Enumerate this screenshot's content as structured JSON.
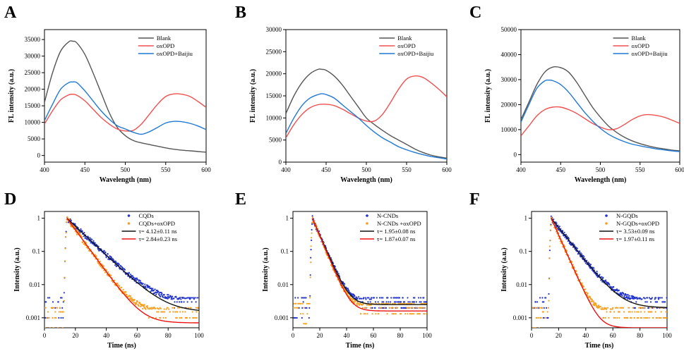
{
  "figure": {
    "panels": [
      {
        "letter": "A",
        "xlabel": "Wavelength (nm)",
        "ylabel": "FL intensity (a.u.)"
      },
      {
        "letter": "B",
        "xlabel": "Wavelength (nm)",
        "ylabel": "FL intensity (a.u.)"
      },
      {
        "letter": "C",
        "xlabel": "Wavelength (nm)",
        "ylabel": "FL intensity (a.u.)"
      },
      {
        "letter": "D",
        "xlabel": "Time (ns)",
        "ylabel": "Intensity (a.u.)"
      },
      {
        "letter": "E",
        "xlabel": "Time (ns)",
        "ylabel": "Intensity (a.u.)"
      },
      {
        "letter": "F",
        "xlabel": "Time (ns)",
        "ylabel": "Intensity (a.u.)"
      }
    ]
  },
  "colors": {
    "black": "#555555",
    "red": "#f05050",
    "blue": "#1f78d4",
    "dot_blue": "#2233cc",
    "dot_orange": "#f5a020",
    "fit_black": "#111111",
    "fit_red": "#ee1111"
  },
  "chart_data": [
    {
      "panel": "A",
      "type": "line",
      "xlabel": "Wavelength (nm)",
      "ylabel": "FL intensity (a.u.)",
      "xlim": [
        400,
        600
      ],
      "ylim": [
        -2000,
        38000
      ],
      "xticks": [
        "400",
        "450",
        "500",
        "550",
        "600"
      ],
      "yticks": [
        "0",
        "5000",
        "10000",
        "15000",
        "20000",
        "25000",
        "30000",
        "35000"
      ],
      "legend_position": "top-right",
      "series": [
        {
          "name": "Blank",
          "color": "black",
          "x": [
            400,
            410,
            420,
            430,
            435,
            440,
            450,
            460,
            470,
            480,
            490,
            500,
            510,
            520,
            530,
            540,
            550,
            560,
            570,
            580,
            590,
            600
          ],
          "y": [
            16000,
            25000,
            31500,
            34300,
            34500,
            34000,
            30500,
            25000,
            19000,
            13000,
            8500,
            6000,
            4500,
            3800,
            3300,
            2800,
            2300,
            1900,
            1600,
            1400,
            1200,
            1000
          ]
        },
        {
          "name": "oxOPD",
          "color": "red",
          "x": [
            400,
            410,
            420,
            430,
            435,
            440,
            450,
            460,
            470,
            480,
            490,
            500,
            510,
            520,
            530,
            540,
            550,
            560,
            570,
            580,
            590,
            600
          ],
          "y": [
            9500,
            13500,
            16800,
            18300,
            18500,
            18200,
            16500,
            14000,
            11500,
            9500,
            8000,
            7400,
            7600,
            9500,
            12500,
            15500,
            17800,
            18600,
            18500,
            17800,
            16300,
            14500
          ]
        },
        {
          "name": "oxOPD+Baijiu",
          "color": "blue",
          "x": [
            400,
            410,
            420,
            430,
            435,
            440,
            450,
            460,
            470,
            480,
            490,
            500,
            510,
            520,
            530,
            540,
            550,
            560,
            570,
            580,
            590,
            600
          ],
          "y": [
            10500,
            15500,
            20000,
            22000,
            22200,
            22000,
            19500,
            16500,
            13500,
            11000,
            9000,
            8000,
            7000,
            6400,
            7200,
            8500,
            9800,
            10300,
            10200,
            9700,
            8900,
            7800
          ]
        }
      ]
    },
    {
      "panel": "B",
      "type": "line",
      "xlabel": "Wavelength (nm)",
      "ylabel": "FL intensity (a.u.)",
      "xlim": [
        400,
        600
      ],
      "ylim": [
        0,
        30000
      ],
      "xticks": [
        "400",
        "450",
        "500",
        "550",
        "600"
      ],
      "yticks": [
        "0",
        "5000",
        "10000",
        "15000",
        "20000",
        "25000",
        "30000"
      ],
      "legend_position": "top-right",
      "series": [
        {
          "name": "Blank",
          "color": "black",
          "x": [
            400,
            410,
            420,
            430,
            440,
            445,
            450,
            460,
            470,
            480,
            490,
            500,
            510,
            520,
            530,
            540,
            550,
            560,
            570,
            580,
            590,
            600
          ],
          "y": [
            11000,
            15000,
            18000,
            20000,
            21000,
            21000,
            20800,
            19500,
            17500,
            15000,
            12500,
            10000,
            8500,
            7200,
            6000,
            5000,
            4000,
            3000,
            2200,
            1600,
            1200,
            900
          ]
        },
        {
          "name": "oxOPD",
          "color": "red",
          "x": [
            400,
            410,
            420,
            430,
            440,
            450,
            460,
            470,
            480,
            490,
            500,
            510,
            520,
            530,
            540,
            550,
            560,
            570,
            580,
            590,
            600
          ],
          "y": [
            5500,
            8500,
            10800,
            12300,
            13000,
            13100,
            12800,
            12000,
            11000,
            10000,
            9300,
            9300,
            10800,
            13500,
            16500,
            18800,
            19500,
            19200,
            18000,
            16500,
            14800
          ]
        },
        {
          "name": "oxOPD+Baijiu",
          "color": "blue",
          "x": [
            400,
            410,
            420,
            430,
            440,
            445,
            450,
            460,
            470,
            480,
            490,
            500,
            510,
            520,
            530,
            540,
            550,
            560,
            570,
            580,
            590,
            600
          ],
          "y": [
            6500,
            10000,
            12800,
            14500,
            15300,
            15500,
            15300,
            14500,
            13000,
            11500,
            10000,
            8300,
            6800,
            5500,
            4500,
            3500,
            2800,
            2200,
            1700,
            1300,
            1000,
            700
          ]
        }
      ]
    },
    {
      "panel": "C",
      "type": "line",
      "xlabel": "Wavelength (nm)",
      "ylabel": "FL intensity (a.u.)",
      "xlim": [
        400,
        600
      ],
      "ylim": [
        -3000,
        50000
      ],
      "xticks": [
        "400",
        "450",
        "500",
        "550",
        "600"
      ],
      "yticks": [
        "0",
        "10000",
        "20000",
        "30000",
        "40000",
        "50000"
      ],
      "legend_position": "top-right",
      "series": [
        {
          "name": "Blank",
          "color": "black",
          "x": [
            400,
            410,
            420,
            430,
            440,
            450,
            460,
            470,
            480,
            490,
            500,
            510,
            520,
            530,
            540,
            550,
            560,
            570,
            580,
            590,
            600
          ],
          "y": [
            14000,
            21000,
            28000,
            33000,
            35000,
            34800,
            33000,
            29000,
            24000,
            19000,
            15000,
            11500,
            9000,
            7000,
            5500,
            4400,
            3500,
            2800,
            2300,
            1800,
            1500
          ]
        },
        {
          "name": "oxOPD",
          "color": "red",
          "x": [
            400,
            410,
            420,
            430,
            440,
            450,
            460,
            470,
            480,
            490,
            500,
            510,
            520,
            530,
            540,
            550,
            560,
            570,
            580,
            590,
            600
          ],
          "y": [
            7500,
            11500,
            15500,
            18000,
            19000,
            19000,
            18000,
            16500,
            14500,
            12500,
            11000,
            10000,
            10300,
            12000,
            14000,
            15500,
            16000,
            15700,
            15000,
            13800,
            12500
          ]
        },
        {
          "name": "oxOPD+Baijiu",
          "color": "blue",
          "x": [
            400,
            410,
            420,
            430,
            435,
            440,
            450,
            460,
            470,
            480,
            490,
            500,
            510,
            520,
            530,
            540,
            550,
            560,
            570,
            580,
            590,
            600
          ],
          "y": [
            13000,
            20000,
            26500,
            29500,
            29800,
            29600,
            28000,
            25000,
            21000,
            17000,
            13500,
            10500,
            8200,
            6500,
            5200,
            4200,
            3500,
            2900,
            2300,
            1900,
            1500,
            1200
          ]
        }
      ]
    },
    {
      "panel": "D",
      "type": "scatter",
      "xlabel": "Time (ns)",
      "ylabel": "Intensity (a.u.)",
      "xlim": [
        0,
        100
      ],
      "ylim": [
        0.0005,
        1.6
      ],
      "yscale": "log",
      "xticks": [
        "0",
        "20",
        "40",
        "60",
        "80",
        "100"
      ],
      "yticks": [
        "0.001",
        "0.01",
        "0.1",
        "1"
      ],
      "legend_position": "top-right",
      "peak_time": 14.5,
      "series": [
        {
          "name": "CQDs",
          "kind": "scatter",
          "color": "dot_blue",
          "tau": 4.12,
          "floor": 0.003
        },
        {
          "name": "CQDs+oxOPD",
          "kind": "scatter",
          "color": "dot_orange",
          "tau": 2.84,
          "floor": 0.0015
        },
        {
          "name": "τ= 4.12±0.11 ns",
          "kind": "fit",
          "color": "fit_black",
          "tau": 4.12,
          "floor": 0.0015
        },
        {
          "name": "τ= 2.84±0.23 ns",
          "kind": "fit",
          "color": "fit_red",
          "tau": 2.84,
          "floor": 0.0007
        }
      ]
    },
    {
      "panel": "E",
      "type": "scatter",
      "xlabel": "Time (ns)",
      "ylabel": "Intensity (a.u.)",
      "xlim": [
        0,
        100
      ],
      "ylim": [
        0.0005,
        1.6
      ],
      "yscale": "log",
      "xticks": [
        "0",
        "20",
        "40",
        "60",
        "80",
        "100"
      ],
      "yticks": [
        "0.001",
        "0.01",
        "0.1",
        "1"
      ],
      "legend_position": "top-right",
      "peak_time": 14.5,
      "series": [
        {
          "name": "N-CNDs",
          "kind": "scatter",
          "color": "dot_blue",
          "tau": 1.95,
          "floor": 0.003
        },
        {
          "name": "N-CNDs +oxOPD",
          "kind": "scatter",
          "color": "dot_orange",
          "tau": 1.87,
          "floor": 0.002
        },
        {
          "name": "τ= 1.95±0.08 ns",
          "kind": "fit",
          "color": "fit_black",
          "tau": 1.95,
          "floor": 0.0025
        },
        {
          "name": "τ= 1.87±0.07 ns",
          "kind": "fit",
          "color": "fit_red",
          "tau": 1.87,
          "floor": 0.0016
        }
      ]
    },
    {
      "panel": "F",
      "type": "scatter",
      "xlabel": "Time (ns)",
      "ylabel": "Intensity (a.u.)",
      "xlim": [
        0,
        100
      ],
      "ylim": [
        0.0005,
        1.6
      ],
      "yscale": "log",
      "xticks": [
        "0",
        "20",
        "40",
        "60",
        "80",
        "100"
      ],
      "yticks": [
        "0.001",
        "0.01",
        "0.1",
        "1"
      ],
      "legend_position": "top-right",
      "peak_time": 14.5,
      "series": [
        {
          "name": "N-GQDs",
          "kind": "scatter",
          "color": "dot_blue",
          "tau": 3.53,
          "floor": 0.003
        },
        {
          "name": "N-GQDs+oxOPD",
          "kind": "scatter",
          "color": "dot_orange",
          "tau": 1.97,
          "floor": 0.0015
        },
        {
          "name": "τ= 3.53±0.09 ns",
          "kind": "fit",
          "color": "fit_black",
          "tau": 3.53,
          "floor": 0.002
        },
        {
          "name": "τ= 1.97±0.11 ns",
          "kind": "fit",
          "color": "fit_red",
          "tau": 1.97,
          "floor": 0.0005
        }
      ]
    }
  ]
}
